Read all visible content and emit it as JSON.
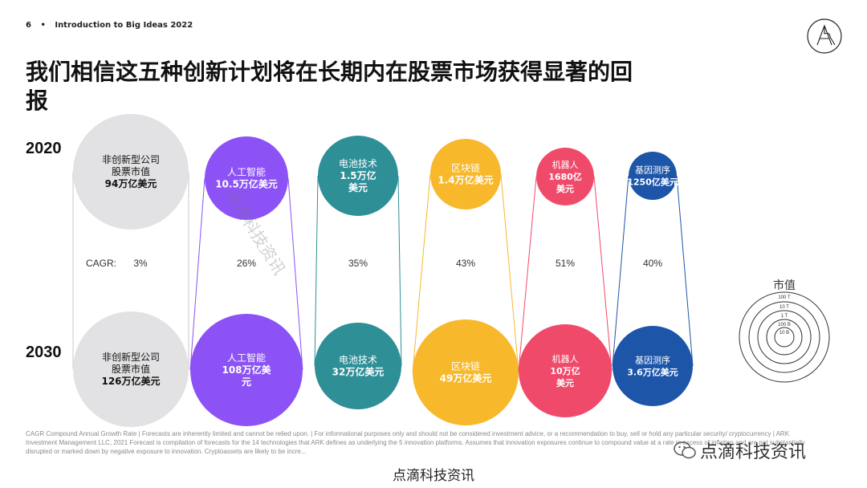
{
  "header": {
    "page_number": "6",
    "doc_title": "Introduction to Big Ideas 2022"
  },
  "title": "我们相信这五种创新计划将在长期内在股票市场获得显著的回报",
  "years": {
    "top": "2020",
    "bottom": "2030"
  },
  "colors": {
    "grey": "#e2e2e4",
    "purple": "#8c52f5",
    "teal": "#2e8f97",
    "yellow": "#f7b82b",
    "pink": "#f04a6b",
    "blue": "#1d55a9"
  },
  "chart_data": {
    "type": "bubble-comparison",
    "cagr_label": "CAGR:",
    "categories": [
      {
        "name": "非创新型公司股票市值",
        "color_key": "grey",
        "cagr": "3%",
        "value_2020": 94,
        "value_2030": 126,
        "unit": "万亿美元",
        "label_2020": [
          "非创新型公司",
          "股票市值",
          "94万亿美元"
        ],
        "label_2030": [
          "非创新型公司",
          "股票市值",
          "126万亿美元"
        ]
      },
      {
        "name": "人工智能",
        "color_key": "purple",
        "cagr": "26%",
        "value_2020": 10.5,
        "value_2030": 108,
        "unit": "万亿美元",
        "label_2020": [
          "人工智能",
          "10.5万亿美元"
        ],
        "label_2030": [
          "人工智能",
          "108万亿美",
          "元"
        ]
      },
      {
        "name": "电池技术",
        "color_key": "teal",
        "cagr": "35%",
        "value_2020": 1.5,
        "value_2030": 32,
        "unit": "万亿美元",
        "label_2020": [
          "电池技术",
          "1.5万亿",
          "美元"
        ],
        "label_2030": [
          "电池技术",
          "32万亿美元"
        ]
      },
      {
        "name": "区块链",
        "color_key": "yellow",
        "cagr": "43%",
        "value_2020": 1.4,
        "value_2030": 49,
        "unit": "万亿美元",
        "label_2020": [
          "区块链",
          "1.4万亿美元"
        ],
        "label_2030": [
          "区块链",
          "49万亿美元"
        ]
      },
      {
        "name": "机器人",
        "color_key": "pink",
        "cagr": "51%",
        "value_2020": 1680,
        "value_2030": 10,
        "unit_2020": "亿美元",
        "unit": "万亿美元",
        "label_2020": [
          "机器人",
          "1680亿",
          "美元"
        ],
        "label_2030": [
          "机器人",
          "10万亿",
          "美元"
        ]
      },
      {
        "name": "基因测序",
        "color_key": "blue",
        "cagr": "40%",
        "value_2020": 1250,
        "value_2030": 3.6,
        "unit_2020": "亿美元",
        "unit": "万亿美元",
        "label_2020": [
          "基因测序",
          "1250亿美元"
        ],
        "label_2030": [
          "基因测序",
          "3.6万亿美元"
        ]
      }
    ]
  },
  "legend": {
    "title": "市值",
    "rings": [
      "100 T",
      "10 T",
      "1 T",
      "100 B",
      "10 B"
    ]
  },
  "footnote": "CAGR Compound Annual Growth Rate | Forecasts are inherently limited and cannot be relied upon. | For informational purposes only and should not be considered investment advice, or a recommendation to buy, sell or hold any particular security/ cryptocurrency | ARK Investment Management LLC, 2021 Forecast is compilation of forecasts for the 14 technologies that ARK defines as underlying the 5 innovation platforms. Assumes that innovation exposures continue to compound value at a rate in excess of inflation and are not substantially disrupted or marked down by negative exposure to innovation. Cryptoassets are likely to be incre...",
  "watermark": "点滴科技资讯",
  "wechat_label": "点滴科技资讯",
  "bottom_brand": "点滴科技资讯"
}
